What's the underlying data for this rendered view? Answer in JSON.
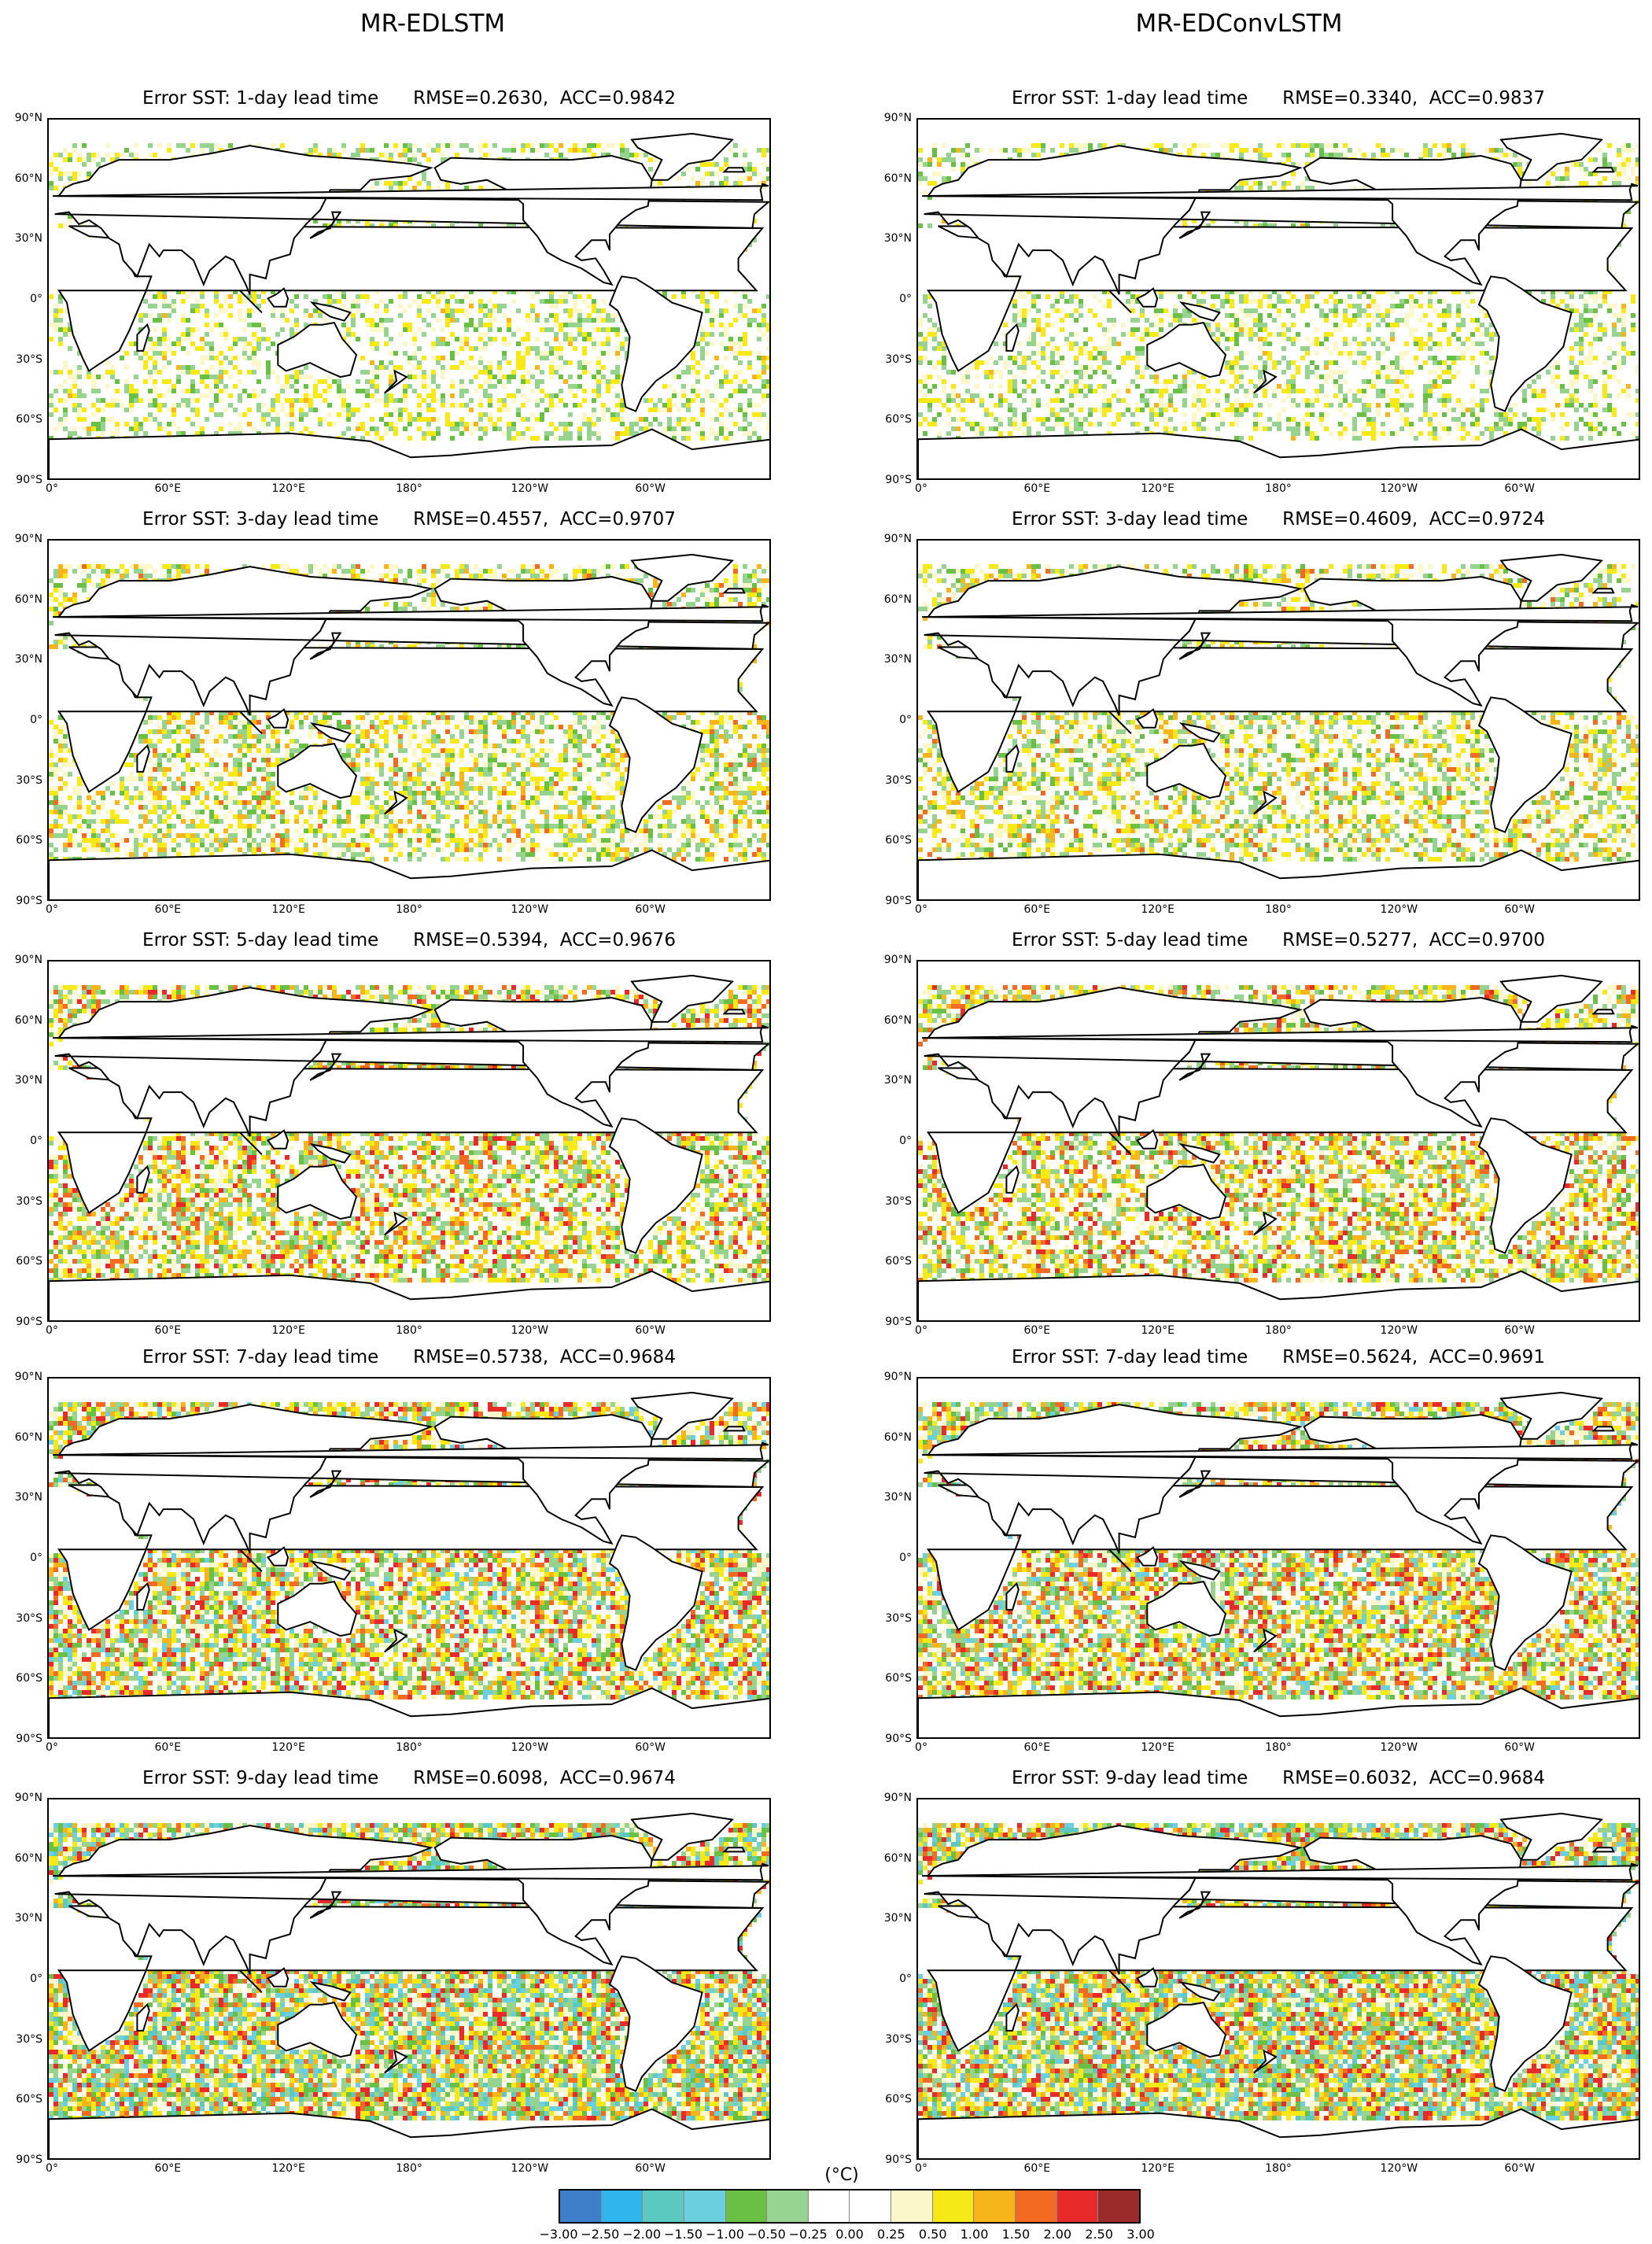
{
  "columns": [
    {
      "title": "MR-EDLSTM"
    },
    {
      "title": "MR-EDConvLSTM"
    }
  ],
  "panels": [
    {
      "title": "Error SST: 1-day lead time      RMSE=0.2630,  ACC=0.9842",
      "model": "MR-EDLSTM",
      "lead_days": 1,
      "RMSE": 0.263,
      "ACC": 0.9842
    },
    {
      "title": "Error SST: 1-day lead time      RMSE=0.3340,  ACC=0.9837",
      "model": "MR-EDConvLSTM",
      "lead_days": 1,
      "RMSE": 0.334,
      "ACC": 0.9837
    },
    {
      "title": "Error SST: 3-day lead time      RMSE=0.4557,  ACC=0.9707",
      "model": "MR-EDLSTM",
      "lead_days": 3,
      "RMSE": 0.4557,
      "ACC": 0.9707
    },
    {
      "title": "Error SST: 3-day lead time      RMSE=0.4609,  ACC=0.9724",
      "model": "MR-EDConvLSTM",
      "lead_days": 3,
      "RMSE": 0.4609,
      "ACC": 0.9724
    },
    {
      "title": "Error SST: 5-day lead time      RMSE=0.5394,  ACC=0.9676",
      "model": "MR-EDLSTM",
      "lead_days": 5,
      "RMSE": 0.5394,
      "ACC": 0.9676
    },
    {
      "title": "Error SST: 5-day lead time      RMSE=0.5277,  ACC=0.9700",
      "model": "MR-EDConvLSTM",
      "lead_days": 5,
      "RMSE": 0.5277,
      "ACC": 0.97
    },
    {
      "title": "Error SST: 7-day lead time      RMSE=0.5738,  ACC=0.9684",
      "model": "MR-EDLSTM",
      "lead_days": 7,
      "RMSE": 0.5738,
      "ACC": 0.9684
    },
    {
      "title": "Error SST: 7-day lead time      RMSE=0.5624,  ACC=0.9691",
      "model": "MR-EDConvLSTM",
      "lead_days": 7,
      "RMSE": 0.5624,
      "ACC": 0.9691
    },
    {
      "title": "Error SST: 9-day lead time      RMSE=0.6098,  ACC=0.9674",
      "model": "MR-EDLSTM",
      "lead_days": 9,
      "RMSE": 0.6098,
      "ACC": 0.9674
    },
    {
      "title": "Error SST: 9-day lead time      RMSE=0.6032,  ACC=0.9684",
      "model": "MR-EDConvLSTM",
      "lead_days": 9,
      "RMSE": 0.6032,
      "ACC": 0.9684
    }
  ],
  "lat_labels": [
    "90°N",
    "60°N",
    "30°N",
    "0°",
    "30°S",
    "60°S",
    "90°S"
  ],
  "lon_labels": [
    "0°",
    "60°E",
    "120°E",
    "180°",
    "120°W",
    "60°W"
  ],
  "colorbar": {
    "unit": "(°C)",
    "ticks": [
      "−3.00",
      "−2.50",
      "−2.00",
      "−1.50",
      "−1.00",
      "−0.50",
      "−0.25",
      "0.00",
      "0.25",
      "0.50",
      "1.00",
      "1.50",
      "2.00",
      "2.50",
      "3.00"
    ],
    "colors": [
      "#3f7fc9",
      "#2fb6ec",
      "#5cc8c0",
      "#6ccfe0",
      "#6abf45",
      "#96d38f",
      "#ffffff",
      "#ffffff",
      "#fbf7c8",
      "#f7e915",
      "#f8b41b",
      "#f36b22",
      "#e82a2a",
      "#9b2a2a"
    ]
  },
  "field_colors": {
    "land": "#ffffff",
    "coast": "#000000",
    "ocean": "#ffffff"
  }
}
